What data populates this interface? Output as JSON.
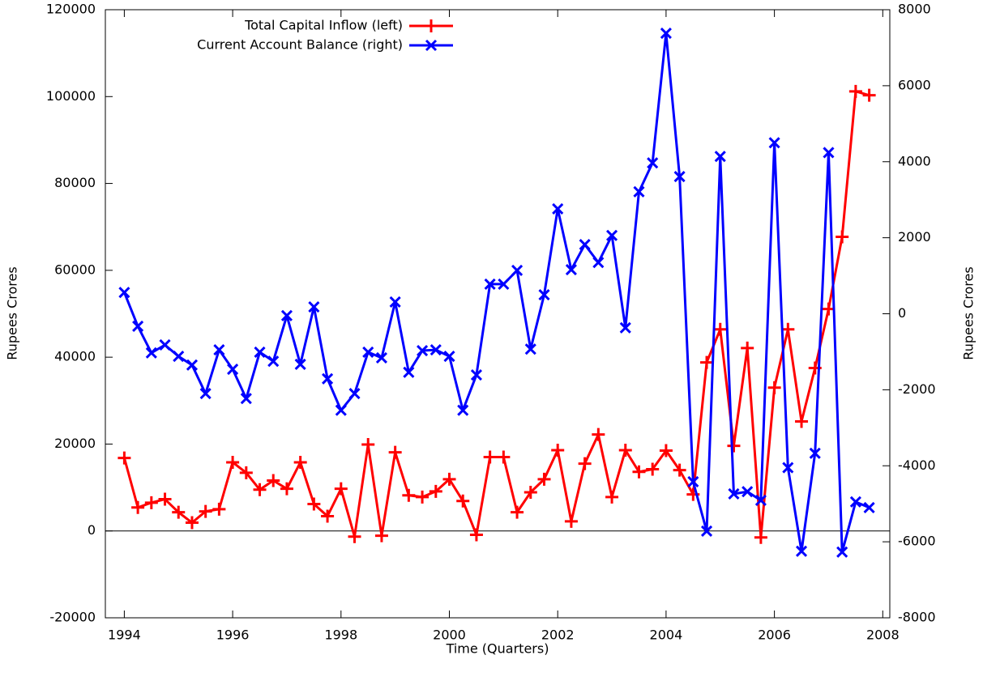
{
  "chart_data": {
    "type": "line",
    "xlabel": "Time (Quarters)",
    "ylabel": "Rupees Crores",
    "y2label": "Rupees Crores",
    "x": [
      1994,
      1994.25,
      1994.5,
      1994.75,
      1995,
      1995.25,
      1995.5,
      1995.75,
      1996,
      1996.25,
      1996.5,
      1996.75,
      1997,
      1997.25,
      1997.5,
      1997.75,
      1998,
      1998.25,
      1998.5,
      1998.75,
      1999,
      1999.25,
      1999.5,
      1999.75,
      2000,
      2000.25,
      2000.5,
      2000.75,
      2001,
      2001.25,
      2001.5,
      2001.75,
      2002,
      2002.25,
      2002.5,
      2002.75,
      2003,
      2003.25,
      2003.5,
      2003.75,
      2004,
      2004.25,
      2004.5,
      2004.75,
      2005,
      2005.25,
      2005.5,
      2005.75,
      2006,
      2006.25,
      2006.5,
      2006.75,
      2007,
      2007.25,
      2007.5,
      2007.75
    ],
    "series": [
      {
        "name": "Total Capital Inflow (left)",
        "color": "#ff0000",
        "marker": "plus",
        "axis": "y",
        "values": [
          16800,
          5400,
          6500,
          7300,
          4300,
          1900,
          4500,
          5000,
          15800,
          13400,
          9500,
          11600,
          9700,
          15800,
          6200,
          3400,
          9700,
          -1300,
          19900,
          -1100,
          18100,
          8200,
          7800,
          9100,
          11900,
          6900,
          -900,
          17000,
          17000,
          4300,
          8900,
          11900,
          18600,
          2200,
          15500,
          22200,
          7800,
          18600,
          13600,
          14200,
          18500,
          14000,
          8400,
          38800,
          46400,
          19600,
          42100,
          -1500,
          33000,
          46400,
          25200,
          37500,
          51100,
          67700,
          101200,
          100300
        ]
      },
      {
        "name": "Current Account Balance (right)",
        "color": "#0000ff",
        "marker": "cross",
        "axis": "y2",
        "values": [
          560,
          -330,
          -1030,
          -820,
          -1120,
          -1350,
          -2100,
          -950,
          -1460,
          -2230,
          -1010,
          -1250,
          -50,
          -1330,
          180,
          -1710,
          -2540,
          -2100,
          -1010,
          -1160,
          310,
          -1540,
          -970,
          -950,
          -1120,
          -2540,
          -1610,
          780,
          780,
          1140,
          -930,
          500,
          2760,
          1160,
          1820,
          1350,
          2060,
          -370,
          3210,
          3970,
          7380,
          3610,
          -4420,
          -5720,
          4140,
          -4740,
          -4680,
          -4910,
          4500,
          -4050,
          -6250,
          -3670,
          4240,
          -6270,
          -4950,
          -5100
        ]
      }
    ],
    "xlim": [
      1993.65,
      2008.13
    ],
    "xticks": [
      1994,
      1996,
      1998,
      2000,
      2002,
      2004,
      2006,
      2008
    ],
    "ylim": [
      -20000,
      120000
    ],
    "yticks": [
      -20000,
      0,
      20000,
      40000,
      60000,
      80000,
      100000,
      120000
    ],
    "y2lim": [
      -8000,
      8000
    ],
    "y2ticks": [
      -8000,
      -6000,
      -4000,
      -2000,
      0,
      2000,
      4000,
      6000,
      8000
    ],
    "grid": false,
    "zeroaxis": true,
    "legend": "top left"
  }
}
